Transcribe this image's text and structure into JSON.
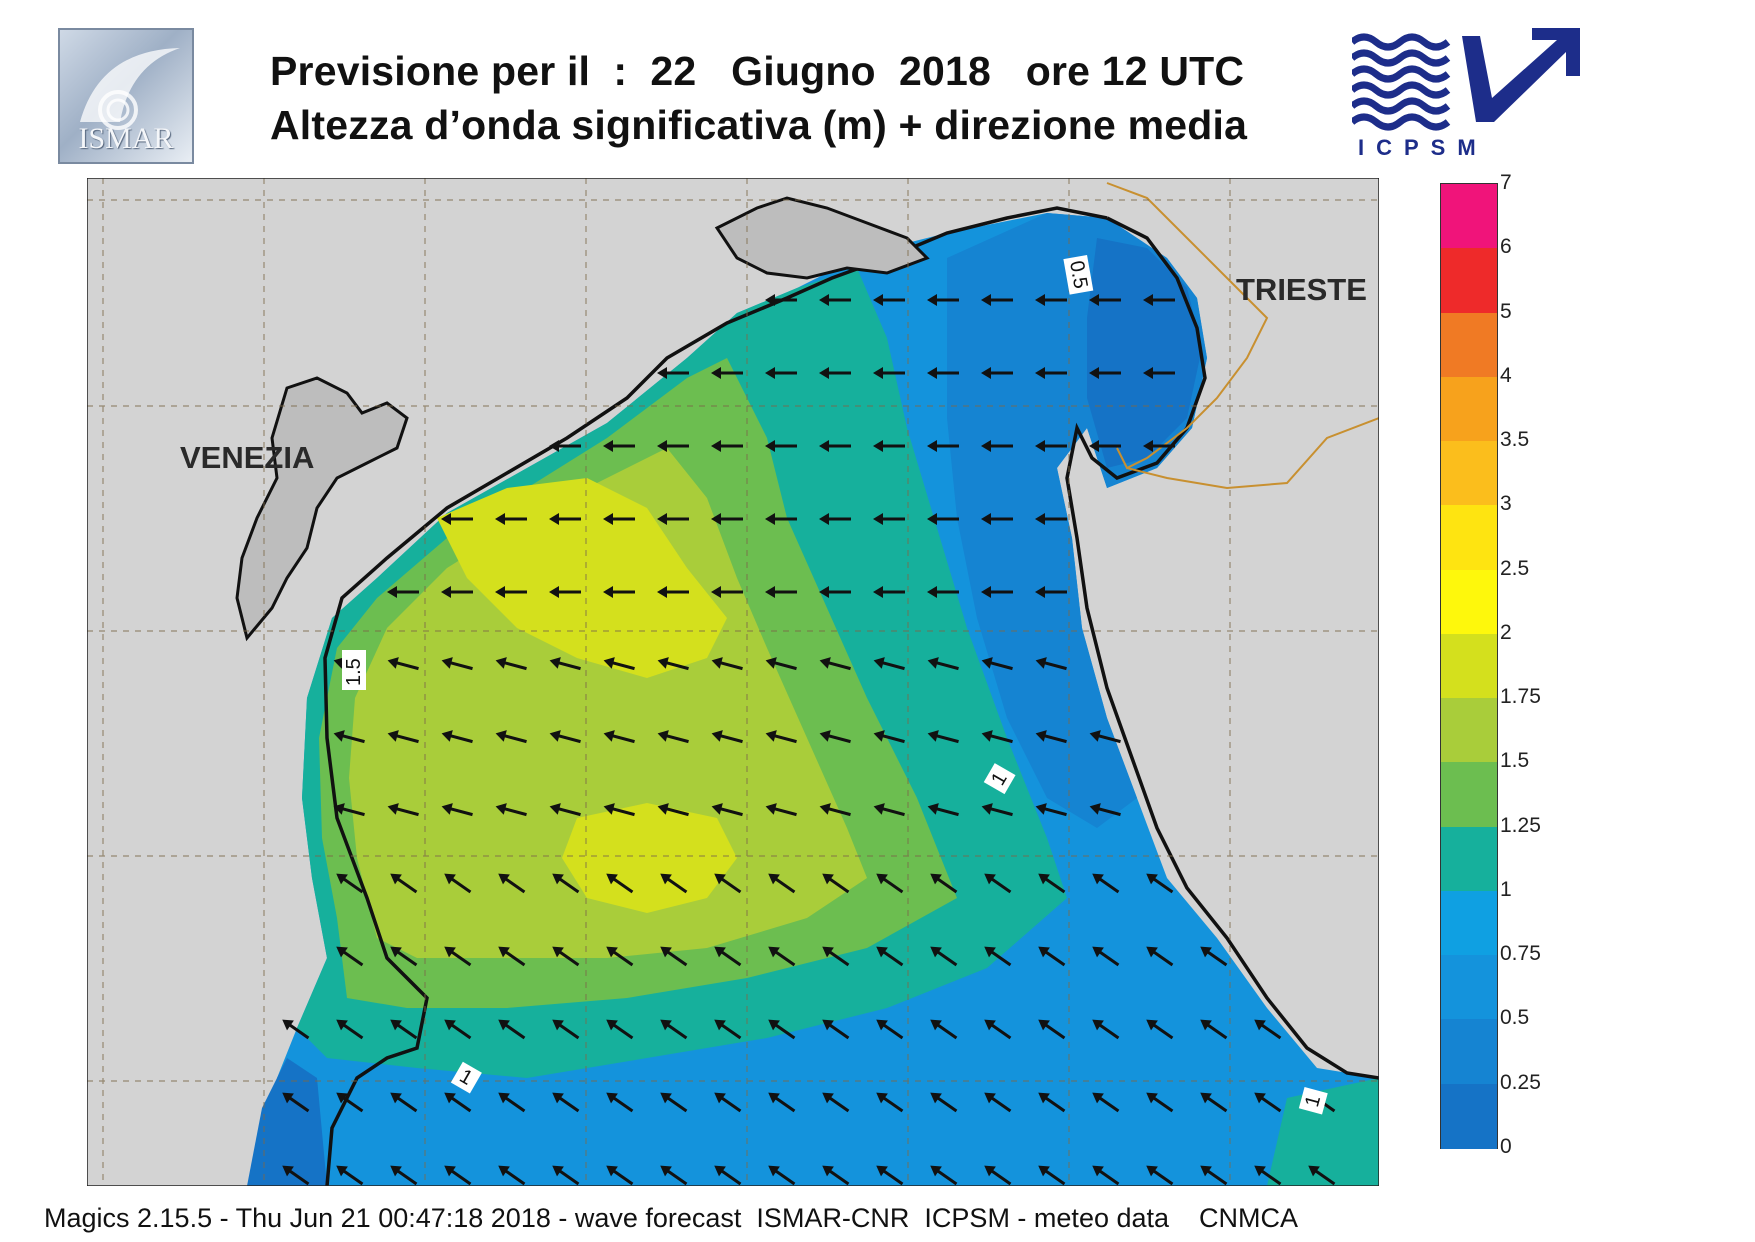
{
  "header": {
    "title_line1": "Previsione per il  :  22   Giugno  2018   ore 12 UTC",
    "title_line2": "Altezza d’onda significativa (m) + direzione media"
  },
  "logos": {
    "left_text": "ISMAR",
    "right_text": "ICPSM"
  },
  "map": {
    "cities": [
      {
        "name": "VENEZIA"
      },
      {
        "name": "TRIESTE"
      }
    ],
    "contour_labels": [
      "0.5",
      "1.5",
      "1",
      "1",
      "1"
    ],
    "mean_direction": "toward west / south-west",
    "land_color": "#d3d3d3",
    "frontier_color": "#c89030"
  },
  "colorbar": {
    "levels": [
      "7",
      "6",
      "5",
      "4",
      "3.5",
      "3",
      "2.5",
      "2",
      "1.75",
      "1.5",
      "1.25",
      "1",
      "0.75",
      "0.5",
      "0.25",
      "0"
    ],
    "colors": [
      "#f0147a",
      "#ee2a2a",
      "#f07a24",
      "#f7a21c",
      "#fbbe1c",
      "#fee411",
      "#fef80c",
      "#d4e01d",
      "#a9cd3a",
      "#6cbe50",
      "#16b09c",
      "#0fa0e2",
      "#1493dc",
      "#1584d2",
      "#1573c6"
    ]
  },
  "footer": {
    "text": "Magics 2.15.5 - Thu Jun 21 00:47:18 2018 - wave forecast  ISMAR-CNR  ICPSM - meteo data    CNMCA"
  }
}
